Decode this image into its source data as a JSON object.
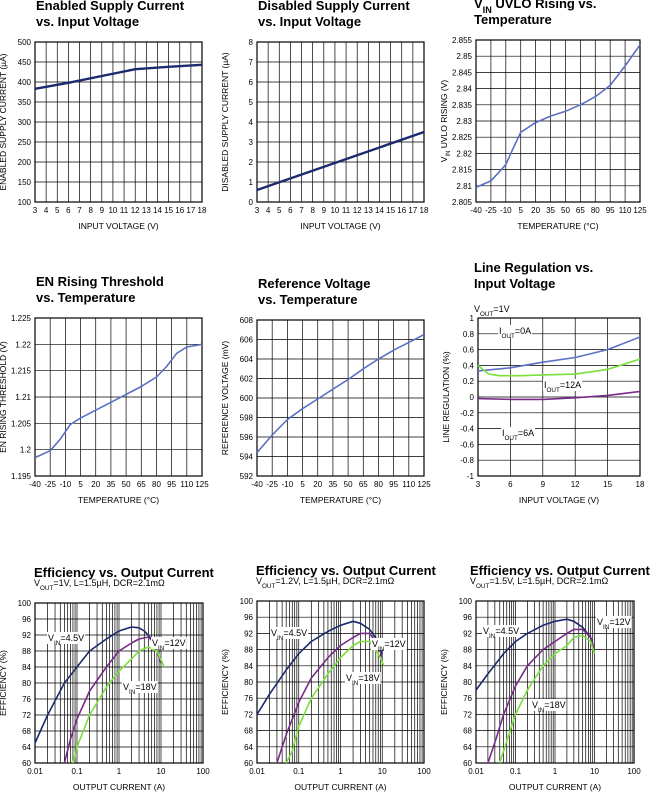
{
  "chart_data": [
    {
      "type": "line",
      "title_lines": [
        "Enabled Supply Current",
        "vs. Input Voltage"
      ],
      "xlabel": "INPUT VOLTAGE (V)",
      "ylabel": "ENABLED SUPPLY CURRENT (µA)",
      "xlim": [
        3,
        18
      ],
      "ylim": [
        100,
        500
      ],
      "x_ticks": [
        "3",
        "4",
        "5",
        "6",
        "7",
        "8",
        "9",
        "10",
        "11",
        "12",
        "13",
        "14",
        "15",
        "16",
        "17",
        "18"
      ],
      "y_ticks": [
        "100",
        "150",
        "200",
        "250",
        "300",
        "350",
        "400",
        "450",
        "500"
      ],
      "series": [
        {
          "color": "#1c2a6e",
          "x": [
            3,
            6,
            9,
            12,
            15,
            18
          ],
          "y": [
            383,
            398,
            415,
            432,
            438,
            443
          ]
        }
      ]
    },
    {
      "type": "line",
      "title_lines": [
        "Disabled Supply Current",
        "vs. Input Voltage"
      ],
      "xlabel": "INPUT VOLTAGE (V)",
      "ylabel": "DISABLED SUPPLY CURRENT (µA)",
      "xlim": [
        3,
        18
      ],
      "ylim": [
        0,
        8
      ],
      "x_ticks": [
        "3",
        "4",
        "5",
        "6",
        "7",
        "8",
        "9",
        "10",
        "11",
        "12",
        "13",
        "14",
        "15",
        "16",
        "17",
        "18"
      ],
      "y_ticks": [
        "0",
        "1",
        "2",
        "3",
        "4",
        "5",
        "6",
        "7",
        "8"
      ],
      "series": [
        {
          "color": "#1c2a6e",
          "x": [
            3,
            18
          ],
          "y": [
            0.6,
            3.5
          ]
        }
      ]
    },
    {
      "type": "line",
      "title_lines": [
        "V_IN UVLO Rising vs.",
        "Temperature"
      ],
      "xlabel": "TEMPERATURE (°C)",
      "ylabel": "V_IN UVLO RISING (V)",
      "xlim": [
        -40,
        125
      ],
      "ylim": [
        2.805,
        2.855
      ],
      "x_ticks": [
        "-40",
        "-25",
        "-10",
        "5",
        "20",
        "35",
        "50",
        "65",
        "80",
        "95",
        "110",
        "125"
      ],
      "y_ticks": [
        "2.805",
        "2.81",
        "2.815",
        "2.82",
        "2.825",
        "2.83",
        "2.835",
        "2.84",
        "2.845",
        "2.85",
        "2.855"
      ],
      "series": [
        {
          "color": "#5b6fc4",
          "x": [
            -40,
            -25,
            -10,
            -2,
            5,
            20,
            35,
            50,
            65,
            80,
            95,
            110,
            125
          ],
          "y": [
            2.8095,
            2.8115,
            2.8165,
            2.822,
            2.8265,
            2.8295,
            2.8315,
            2.833,
            2.835,
            2.8375,
            2.841,
            2.847,
            2.8535
          ]
        }
      ]
    },
    {
      "type": "line",
      "title_lines": [
        "EN Rising Threshold",
        "vs. Temperature"
      ],
      "xlabel": "TEMPERATURE (°C)",
      "ylabel": "EN RISING THRESHOLD (V)",
      "xlim": [
        -40,
        125
      ],
      "ylim": [
        1.195,
        1.225
      ],
      "x_ticks": [
        "-40",
        "-25",
        "-10",
        "5",
        "20",
        "35",
        "50",
        "65",
        "80",
        "95",
        "110",
        "125"
      ],
      "y_ticks": [
        "1.195",
        "1.2",
        "1.205",
        "1.21",
        "1.215",
        "1.22",
        "1.225"
      ],
      "series": [
        {
          "color": "#5b6fc4",
          "x": [
            -40,
            -25,
            -15,
            -5,
            5,
            20,
            35,
            50,
            65,
            80,
            90,
            100,
            110,
            125
          ],
          "y": [
            1.1985,
            1.1998,
            1.202,
            1.2048,
            1.206,
            1.2075,
            1.209,
            1.2105,
            1.212,
            1.2138,
            1.2158,
            1.2183,
            1.2195,
            1.22
          ]
        }
      ]
    },
    {
      "type": "line",
      "title_lines": [
        "Reference Voltage",
        "vs. Temperature"
      ],
      "xlabel": "TEMPERATURE (°C)",
      "ylabel": "REFERENCE VOLTAGE (mV)",
      "xlim": [
        -40,
        125
      ],
      "ylim": [
        592,
        608
      ],
      "x_ticks": [
        "-40",
        "-25",
        "-10",
        "5",
        "20",
        "35",
        "50",
        "65",
        "80",
        "95",
        "110",
        "125"
      ],
      "y_ticks": [
        "592",
        "594",
        "596",
        "598",
        "600",
        "602",
        "604",
        "606",
        "608"
      ],
      "series": [
        {
          "color": "#5b6fc4",
          "x": [
            -40,
            -25,
            -10,
            5,
            20,
            35,
            50,
            65,
            80,
            95,
            110,
            125
          ],
          "y": [
            594.4,
            596.2,
            597.8,
            598.9,
            599.9,
            600.9,
            601.9,
            603.0,
            604.0,
            604.9,
            605.7,
            606.5
          ]
        }
      ]
    },
    {
      "type": "line",
      "title_lines": [
        "Line Regulation vs.",
        "Input Voltage"
      ],
      "subtitle": "V_OUT=1V",
      "xlabel": "INPUT VOLTAGE (V)",
      "ylabel": "LINE REGULATION (%)",
      "xlim": [
        3,
        18
      ],
      "ylim": [
        -1,
        1
      ],
      "x_ticks": [
        "3",
        "6",
        "9",
        "12",
        "15",
        "18"
      ],
      "y_ticks": [
        "-1",
        "-0.8",
        "-0.6",
        "-0.4",
        "-0.2",
        "0",
        "0.2",
        "0.4",
        "0.6",
        "0.8",
        "1"
      ],
      "annotations": [
        "I_OUT=0A",
        "I_OUT=12A",
        "I_OUT=6A"
      ],
      "series": [
        {
          "name": "I_OUT=0A",
          "color": "#5b6fc4",
          "x": [
            3,
            6,
            9,
            12,
            15,
            18
          ],
          "y": [
            0.33,
            0.37,
            0.44,
            0.5,
            0.6,
            0.76
          ]
        },
        {
          "name": "I_OUT=12A",
          "color": "#7ae03a",
          "x": [
            3,
            4,
            5,
            7,
            9,
            12,
            15,
            18
          ],
          "y": [
            0.4,
            0.29,
            0.27,
            0.27,
            0.28,
            0.29,
            0.35,
            0.48
          ]
        },
        {
          "name": "I_OUT=6A",
          "color": "#7a2a88",
          "x": [
            3,
            6,
            9,
            12,
            15,
            18
          ],
          "y": [
            -0.02,
            -0.03,
            -0.03,
            -0.01,
            0.02,
            0.07
          ]
        }
      ]
    },
    {
      "type": "line",
      "title_lines": [
        "Efficiency vs. Output Current"
      ],
      "subtitle": "V_OUT=1V, L=1.5µH, DCR=2.1mΩ",
      "xlabel": "OUTPUT CURRENT (A)",
      "ylabel": "EFFICIENCY (%)",
      "x_scale": "log",
      "xlim": [
        0.01,
        100
      ],
      "ylim": [
        60,
        100
      ],
      "x_ticks": [
        "0.01",
        "0.1",
        "1",
        "10",
        "100"
      ],
      "y_ticks": [
        "60",
        "64",
        "68",
        "72",
        "76",
        "80",
        "84",
        "88",
        "92",
        "96",
        "100"
      ],
      "annotations": [
        "V_IN=4.5V",
        "V_IN=12V",
        "V_IN=18V"
      ],
      "series": [
        {
          "name": "V_IN=4.5V",
          "color": "#1c2a6e",
          "x": [
            0.01,
            0.02,
            0.05,
            0.1,
            0.2,
            0.5,
            1,
            2,
            3,
            4,
            6,
            8
          ],
          "y": [
            65,
            72,
            80,
            84,
            88,
            91,
            93,
            94,
            93.8,
            93,
            91,
            88
          ]
        },
        {
          "name": "V_IN=12V",
          "color": "#7a2a88",
          "x": [
            0.05,
            0.07,
            0.1,
            0.2,
            0.5,
            1,
            2,
            3,
            5,
            7,
            10
          ],
          "y": [
            60,
            66,
            71,
            78,
            84,
            88,
            90,
            91,
            91.5,
            90,
            85
          ]
        },
        {
          "name": "V_IN=18V",
          "color": "#7ae03a",
          "x": [
            0.08,
            0.1,
            0.2,
            0.5,
            1,
            2,
            3,
            5,
            8,
            12
          ],
          "y": [
            60,
            64,
            72,
            79,
            83,
            86,
            88,
            89,
            88,
            84
          ]
        }
      ]
    },
    {
      "type": "line",
      "title_lines": [
        "Efficiency vs. Output Current"
      ],
      "subtitle": "V_OUT=1.2V, L=1.5µH, DCR=2.1mΩ",
      "xlabel": "OUTPUT CURRENT (A)",
      "ylabel": "EFFICIENCY (%)",
      "x_scale": "log",
      "xlim": [
        0.01,
        100
      ],
      "ylim": [
        60,
        100
      ],
      "x_ticks": [
        "0.01",
        "0.1",
        "1",
        "10",
        "100"
      ],
      "y_ticks": [
        "60",
        "64",
        "68",
        "72",
        "76",
        "80",
        "84",
        "88",
        "92",
        "96",
        "100"
      ],
      "annotations": [
        "V_IN=4.5V",
        "V_IN=12V",
        "V_IN=18V"
      ],
      "series": [
        {
          "name": "V_IN=4.5V",
          "color": "#1c2a6e",
          "x": [
            0.01,
            0.02,
            0.05,
            0.1,
            0.2,
            0.5,
            1,
            2,
            3,
            5,
            8,
            10
          ],
          "y": [
            72,
            77,
            83,
            87,
            90,
            92.5,
            94,
            95,
            94.5,
            93,
            90,
            87
          ]
        },
        {
          "name": "V_IN=12V",
          "color": "#7a2a88",
          "x": [
            0.03,
            0.05,
            0.1,
            0.2,
            0.5,
            1,
            2,
            3,
            5,
            8,
            10
          ],
          "y": [
            60,
            67,
            75,
            81,
            86,
            89,
            91,
            92,
            92,
            89,
            86
          ]
        },
        {
          "name": "V_IN=18V",
          "color": "#7ae03a",
          "x": [
            0.05,
            0.07,
            0.1,
            0.2,
            0.5,
            1,
            2,
            3,
            5,
            8,
            11
          ],
          "y": [
            60,
            63,
            69,
            76,
            82,
            86,
            89,
            90,
            90,
            87,
            84
          ]
        }
      ]
    },
    {
      "type": "line",
      "title_lines": [
        "Efficiency vs. Output Current"
      ],
      "subtitle": "V_OUT=1.5V, L=1.5µH, DCR=2.1mΩ",
      "xlabel": "OUTPUT CURRENT (A)",
      "ylabel": "EFFICIENCY (%)",
      "x_scale": "log",
      "xlim": [
        0.01,
        100
      ],
      "ylim": [
        60,
        100
      ],
      "x_ticks": [
        "0.01",
        "0.1",
        "1",
        "10",
        "100"
      ],
      "y_ticks": [
        "60",
        "64",
        "68",
        "72",
        "76",
        "80",
        "84",
        "88",
        "92",
        "96",
        "100"
      ],
      "annotations": [
        "V_IN=4.5V",
        "V_IN=12V",
        "V_IN=18V"
      ],
      "series": [
        {
          "name": "V_IN=4.5V",
          "color": "#1c2a6e",
          "x": [
            0.01,
            0.02,
            0.05,
            0.1,
            0.2,
            0.5,
            1,
            2,
            3,
            5,
            8,
            10
          ],
          "y": [
            78,
            82,
            87,
            90,
            92,
            94,
            95,
            95.5,
            95,
            93.5,
            91,
            88
          ]
        },
        {
          "name": "V_IN=12V",
          "color": "#7a2a88",
          "x": [
            0.02,
            0.03,
            0.05,
            0.1,
            0.2,
            0.5,
            1,
            2,
            3,
            5,
            8,
            10
          ],
          "y": [
            60,
            65,
            72,
            79,
            84,
            88,
            90,
            92,
            93,
            93,
            91,
            88
          ]
        },
        {
          "name": "V_IN=18V",
          "color": "#7ae03a",
          "x": [
            0.04,
            0.05,
            0.1,
            0.2,
            0.5,
            1,
            2,
            3,
            5,
            8,
            10
          ],
          "y": [
            60,
            63,
            72,
            78,
            84,
            87,
            89,
            91,
            91.5,
            90,
            87
          ]
        }
      ]
    }
  ]
}
